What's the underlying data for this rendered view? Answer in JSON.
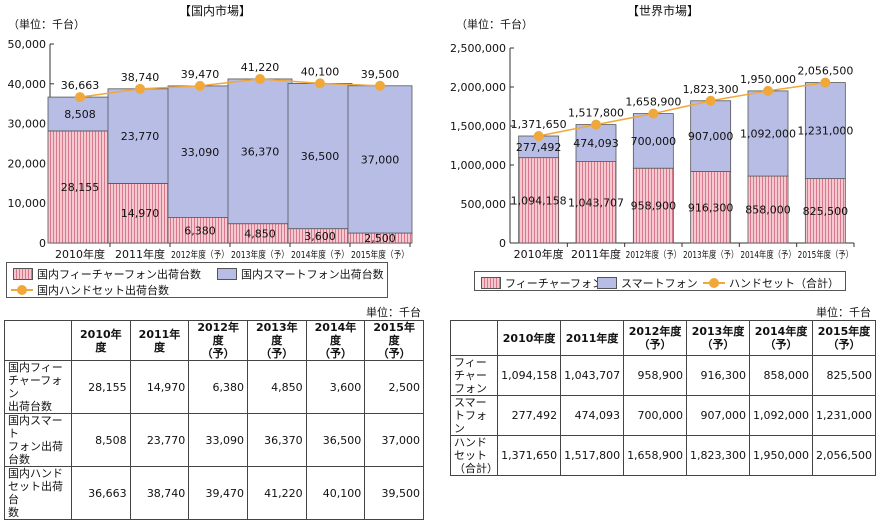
{
  "colors": {
    "feature": "#e38a9a",
    "smart": "#b8bde6",
    "hand": "#f0a83a"
  },
  "left": {
    "title": "【国内市場】",
    "unit_label": "（単位：千台）",
    "legend": [
      "国内フィーチャーフォン出荷台数",
      "国内スマートフォン出荷台数",
      "国内ハンドセット出荷台数"
    ],
    "table_unit": "単位：千台",
    "table": {
      "headers": [
        [
          "2010年度"
        ],
        [
          "2011年度"
        ],
        [
          "2012年度",
          "（予）"
        ],
        [
          "2013年度",
          "（予）"
        ],
        [
          "2014年度",
          "（予）"
        ],
        [
          "2015年度",
          "（予）"
        ]
      ],
      "rows": [
        {
          "label": [
            "国内フィー",
            "チャーフォン",
            "出荷台数"
          ],
          "values": [
            "28,155",
            "14,970",
            "6,380",
            "4,850",
            "3,600",
            "2,500"
          ]
        },
        {
          "label": [
            "国内スマート",
            "フォン出荷",
            "台数"
          ],
          "values": [
            "8,508",
            "23,770",
            "33,090",
            "36,370",
            "36,500",
            "37,000"
          ]
        },
        {
          "label": [
            "国内ハンド",
            "セット出荷台",
            "数"
          ],
          "values": [
            "36,663",
            "38,740",
            "39,470",
            "41,220",
            "40,100",
            "39,500"
          ]
        }
      ]
    }
  },
  "right": {
    "title": "【世界市場】",
    "unit_label": "（単位：千台）",
    "legend": [
      "フィーチャーフォン",
      "スマートフォン",
      "ハンドセット（合計）"
    ],
    "table_unit": "単位：千台",
    "table": {
      "headers": [
        [
          "2010年度"
        ],
        [
          "2011年度"
        ],
        [
          "2012年度",
          "（予）"
        ],
        [
          "2013年度",
          "（予）"
        ],
        [
          "2014年度",
          "（予）"
        ],
        [
          "2015年度",
          "（予）"
        ]
      ],
      "rows": [
        {
          "label": [
            "フィーチャー",
            "フォン"
          ],
          "values": [
            "1,094,158",
            "1,043,707",
            "958,900",
            "916,300",
            "858,000",
            "825,500"
          ]
        },
        {
          "label": [
            "スマートフォ",
            "ン"
          ],
          "values": [
            "277,492",
            "474,093",
            "700,000",
            "907,000",
            "1,092,000",
            "1,231,000"
          ]
        },
        {
          "label": [
            "ハンドセット",
            "（合計）"
          ],
          "values": [
            "1,371,650",
            "1,517,800",
            "1,658,900",
            "1,823,300",
            "1,950,000",
            "2,056,500"
          ]
        }
      ]
    }
  },
  "chart_data": [
    {
      "type": "bar",
      "stacked": true,
      "title": "【国内市場】",
      "ylabel": "（単位：千台）",
      "categories": [
        "2010年度",
        "2011年度",
        "2012年度（予）",
        "2013年度（予）",
        "2014年度（予）",
        "2015年度（予）"
      ],
      "ylim": [
        0,
        50000
      ],
      "yticks": [
        "0",
        "10,000",
        "20,000",
        "30,000",
        "40,000",
        "50,000"
      ],
      "series": [
        {
          "name": "国内フィーチャーフォン出荷台数",
          "values": [
            28155,
            14970,
            6380,
            4850,
            3600,
            2500
          ],
          "labels": [
            "28,155",
            "14,970",
            "6,380",
            "4,850",
            "3,600",
            "2,500"
          ]
        },
        {
          "name": "国内スマートフォン出荷台数",
          "values": [
            8508,
            23770,
            33090,
            36370,
            36500,
            37000
          ],
          "labels": [
            "8,508",
            "23,770",
            "33,090",
            "36,370",
            "36,500",
            "37,000"
          ]
        },
        {
          "name": "国内ハンドセット出荷台数",
          "type": "line",
          "values": [
            36663,
            38740,
            39470,
            41220,
            40100,
            39500
          ],
          "labels": [
            "36,663",
            "38,740",
            "39,470",
            "41,220",
            "40,100",
            "39,500"
          ]
        }
      ]
    },
    {
      "type": "bar",
      "stacked": true,
      "title": "【世界市場】",
      "ylabel": "（単位：千台）",
      "categories": [
        "2010年度",
        "2011年度",
        "2012年度（予）",
        "2013年度（予）",
        "2014年度（予）",
        "2015年度（予）"
      ],
      "ylim": [
        0,
        2500000
      ],
      "yticks": [
        "0",
        "500,000",
        "1,000,000",
        "1,500,000",
        "2,000,000",
        "2,500,000"
      ],
      "series": [
        {
          "name": "フィーチャーフォン",
          "values": [
            1094158,
            1043707,
            958900,
            916300,
            858000,
            825500
          ],
          "labels": [
            "1,094,158",
            "1,043,707",
            "958,900",
            "916,300",
            "858,000",
            "825,500"
          ]
        },
        {
          "name": "スマートフォン",
          "values": [
            277492,
            474093,
            700000,
            907000,
            1092000,
            1231000
          ],
          "labels": [
            "277,492",
            "474,093",
            "700,000",
            "907,000",
            "1,092,000",
            "1,231,000"
          ]
        },
        {
          "name": "ハンドセット（合計）",
          "type": "line",
          "values": [
            1371650,
            1517800,
            1658900,
            1823300,
            1950000,
            2056500
          ],
          "labels": [
            "1,371,650",
            "1,517,800",
            "1,658,900",
            "1,823,300",
            "1,950,000",
            "2,056,500"
          ]
        }
      ]
    }
  ]
}
